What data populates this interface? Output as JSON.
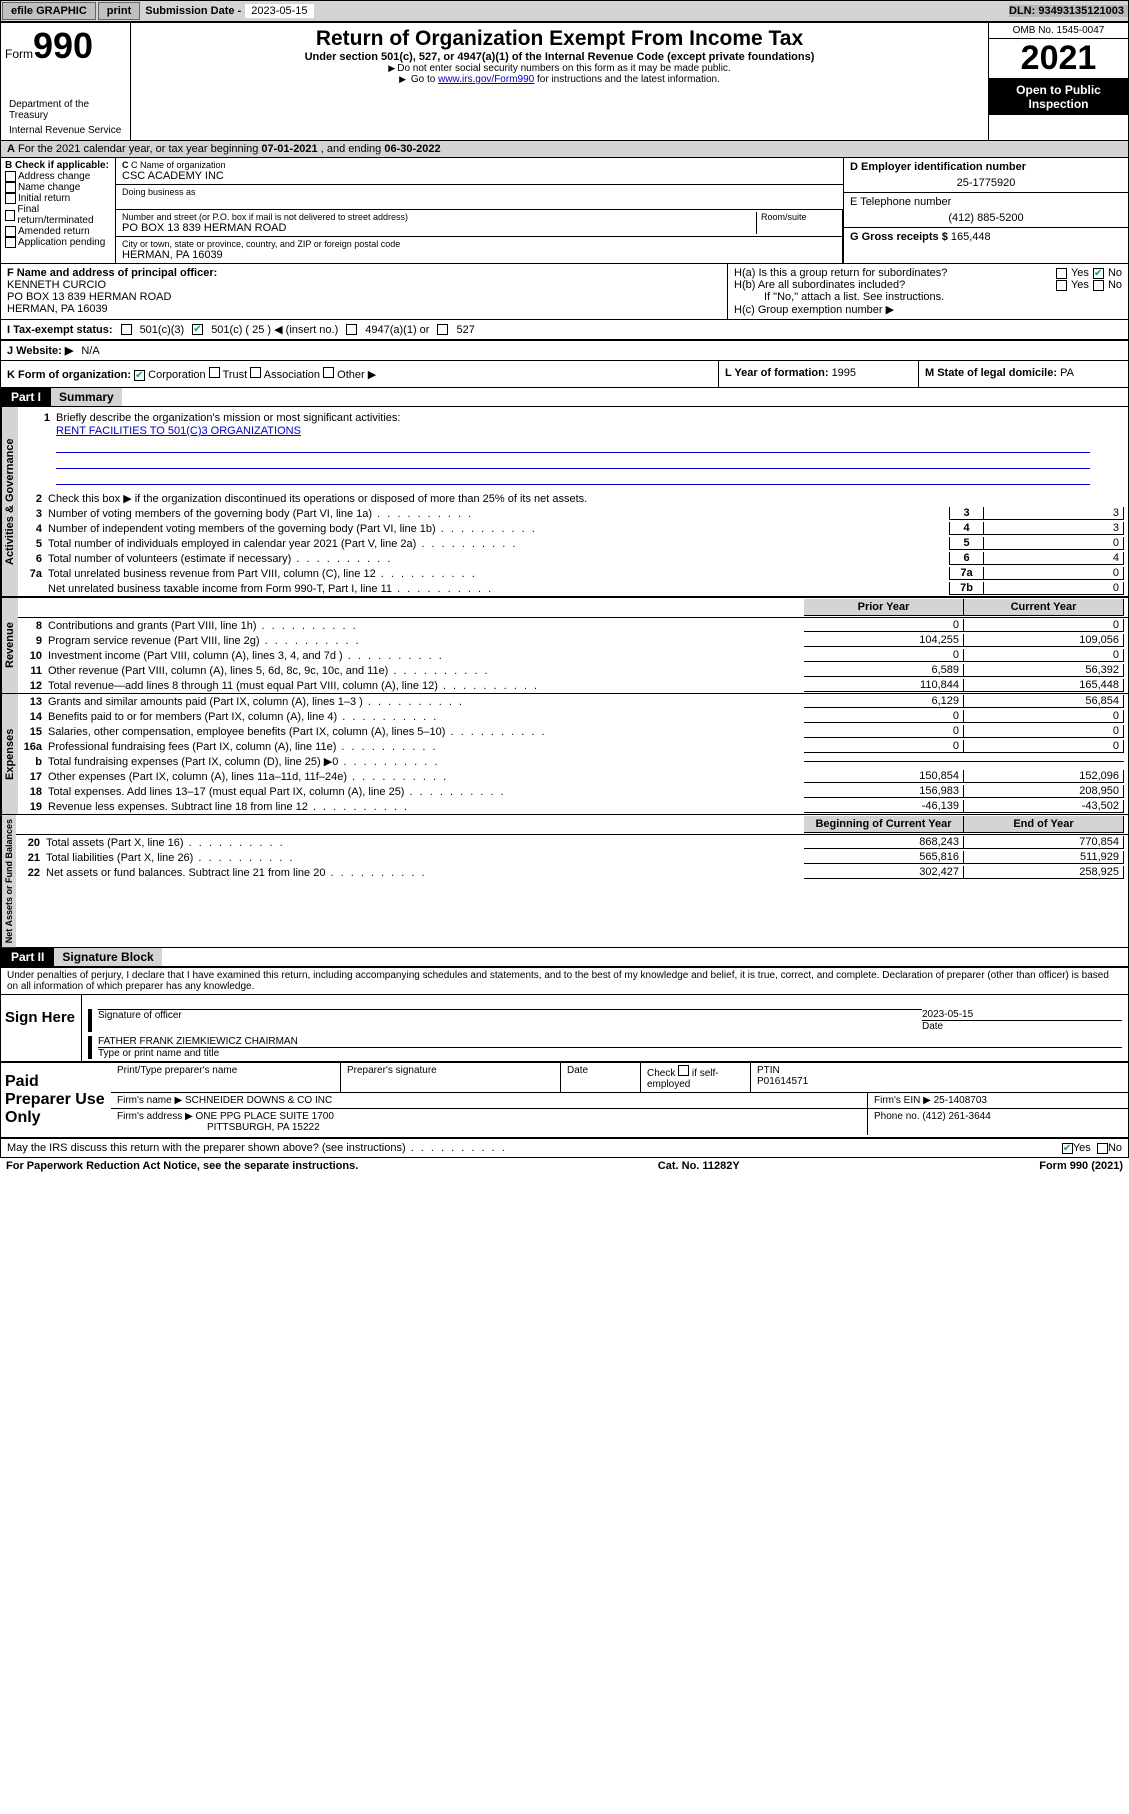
{
  "toolbar": {
    "efile": "efile GRAPHIC",
    "print": "print",
    "sub_label": "Submission Date - ",
    "sub_date": "2023-05-15",
    "dln": "DLN: 93493135121003"
  },
  "header": {
    "form": "Form",
    "num": "990",
    "title": "Return of Organization Exempt From Income Tax",
    "sub": "Under section 501(c), 527, or 4947(a)(1) of the Internal Revenue Code (except private foundations)",
    "note1": "Do not enter social security numbers on this form as it may be made public.",
    "note2_pre": "Go to ",
    "note2_link": "www.irs.gov/Form990",
    "note2_post": " for instructions and the latest information.",
    "omb": "OMB No. 1545-0047",
    "year": "2021",
    "open": "Open to Public Inspection",
    "dept": "Department of the Treasury",
    "irs": "Internal Revenue Service"
  },
  "line_a": {
    "text": "For the 2021 calendar year, or tax year beginning ",
    "begin": "07-01-2021",
    "mid": " , and ending ",
    "end": "06-30-2022"
  },
  "b": {
    "label": "B Check if applicable:",
    "opts": [
      "Address change",
      "Name change",
      "Initial return",
      "Final return/terminated",
      "Amended return",
      "Application pending"
    ]
  },
  "c": {
    "name_lbl": "C Name of organization",
    "name": "CSC ACADEMY INC",
    "dba_lbl": "Doing business as",
    "addr_lbl": "Number and street (or P.O. box if mail is not delivered to street address)",
    "room_lbl": "Room/suite",
    "addr": "PO BOX 13 839 HERMAN ROAD",
    "city_lbl": "City or town, state or province, country, and ZIP or foreign postal code",
    "city": "HERMAN, PA  16039"
  },
  "d": {
    "lbl": "D Employer identification number",
    "val": "25-1775920"
  },
  "e": {
    "lbl": "E Telephone number",
    "val": "(412) 885-5200"
  },
  "g": {
    "lbl": "G Gross receipts $ ",
    "val": "165,448"
  },
  "f": {
    "lbl": "F Name and address of principal officer:",
    "name": "KENNETH CURCIO",
    "addr1": "PO BOX 13 839 HERMAN ROAD",
    "addr2": "HERMAN, PA  16039"
  },
  "h": {
    "a": "H(a)  Is this a group return for subordinates?",
    "b": "H(b)  Are all subordinates included?",
    "note": "If \"No,\" attach a list. See instructions.",
    "c": "H(c)  Group exemption number ▶",
    "yes": "Yes",
    "no": "No"
  },
  "i": {
    "lbl": "I   Tax-exempt status:",
    "o1": "501(c)(3)",
    "o2": "501(c) ( 25 ) ◀ (insert no.)",
    "o3": "4947(a)(1) or",
    "o4": "527"
  },
  "j": {
    "lbl": "J   Website: ▶",
    "val": "N/A"
  },
  "k": {
    "lbl": "K Form of organization:",
    "o1": "Corporation",
    "o2": "Trust",
    "o3": "Association",
    "o4": "Other ▶"
  },
  "l": {
    "lbl": "L Year of formation: ",
    "val": "1995"
  },
  "m": {
    "lbl": "M State of legal domicile: ",
    "val": "PA"
  },
  "part1": {
    "hdr": "Part I",
    "title": "Summary"
  },
  "summary": {
    "l1": "Briefly describe the organization's mission or most significant activities:",
    "mission": "RENT FACILITIES TO 501(C)3 ORGANIZATIONS",
    "l2": "Check this box ▶       if the organization discontinued its operations or disposed of more than 25% of its net assets.",
    "lines_gov": [
      {
        "n": "3",
        "t": "Number of voting members of the governing body (Part VI, line 1a)",
        "box": "3",
        "v": "3"
      },
      {
        "n": "4",
        "t": "Number of independent voting members of the governing body (Part VI, line 1b)",
        "box": "4",
        "v": "3"
      },
      {
        "n": "5",
        "t": "Total number of individuals employed in calendar year 2021 (Part V, line 2a)",
        "box": "5",
        "v": "0"
      },
      {
        "n": "6",
        "t": "Total number of volunteers (estimate if necessary)",
        "box": "6",
        "v": "4"
      },
      {
        "n": "7a",
        "t": "Total unrelated business revenue from Part VIII, column (C), line 12",
        "box": "7a",
        "v": "0"
      },
      {
        "n": "",
        "t": "Net unrelated business taxable income from Form 990-T, Part I, line 11",
        "box": "7b",
        "v": "0"
      }
    ],
    "col_prior": "Prior Year",
    "col_curr": "Current Year",
    "rev": [
      {
        "n": "8",
        "t": "Contributions and grants (Part VIII, line 1h)",
        "p": "0",
        "c": "0"
      },
      {
        "n": "9",
        "t": "Program service revenue (Part VIII, line 2g)",
        "p": "104,255",
        "c": "109,056"
      },
      {
        "n": "10",
        "t": "Investment income (Part VIII, column (A), lines 3, 4, and 7d )",
        "p": "0",
        "c": "0"
      },
      {
        "n": "11",
        "t": "Other revenue (Part VIII, column (A), lines 5, 6d, 8c, 9c, 10c, and 11e)",
        "p": "6,589",
        "c": "56,392"
      },
      {
        "n": "12",
        "t": "Total revenue—add lines 8 through 11 (must equal Part VIII, column (A), line 12)",
        "p": "110,844",
        "c": "165,448"
      }
    ],
    "exp": [
      {
        "n": "13",
        "t": "Grants and similar amounts paid (Part IX, column (A), lines 1–3 )",
        "p": "6,129",
        "c": "56,854"
      },
      {
        "n": "14",
        "t": "Benefits paid to or for members (Part IX, column (A), line 4)",
        "p": "0",
        "c": "0"
      },
      {
        "n": "15",
        "t": "Salaries, other compensation, employee benefits (Part IX, column (A), lines 5–10)",
        "p": "0",
        "c": "0"
      },
      {
        "n": "16a",
        "t": "Professional fundraising fees (Part IX, column (A), line 11e)",
        "p": "0",
        "c": "0"
      },
      {
        "n": "b",
        "t": "Total fundraising expenses (Part IX, column (D), line 25) ▶0",
        "p": "",
        "c": "",
        "shaded": true
      },
      {
        "n": "17",
        "t": "Other expenses (Part IX, column (A), lines 11a–11d, 11f–24e)",
        "p": "150,854",
        "c": "152,096"
      },
      {
        "n": "18",
        "t": "Total expenses. Add lines 13–17 (must equal Part IX, column (A), line 25)",
        "p": "156,983",
        "c": "208,950"
      },
      {
        "n": "19",
        "t": "Revenue less expenses. Subtract line 18 from line 12",
        "p": "-46,139",
        "c": "-43,502"
      }
    ],
    "col_begin": "Beginning of Current Year",
    "col_end": "End of Year",
    "net": [
      {
        "n": "20",
        "t": "Total assets (Part X, line 16)",
        "p": "868,243",
        "c": "770,854"
      },
      {
        "n": "21",
        "t": "Total liabilities (Part X, line 26)",
        "p": "565,816",
        "c": "511,929"
      },
      {
        "n": "22",
        "t": "Net assets or fund balances. Subtract line 21 from line 20",
        "p": "302,427",
        "c": "258,925"
      }
    ],
    "vert_gov": "Activities & Governance",
    "vert_rev": "Revenue",
    "vert_exp": "Expenses",
    "vert_net": "Net Assets or Fund Balances"
  },
  "part2": {
    "hdr": "Part II",
    "title": "Signature Block"
  },
  "sig": {
    "decl": "Under penalties of perjury, I declare that I have examined this return, including accompanying schedules and statements, and to the best of my knowledge and belief, it is true, correct, and complete. Declaration of preparer (other than officer) is based on all information of which preparer has any knowledge.",
    "sign_here": "Sign Here",
    "sig_officer": "Signature of officer",
    "date_lbl": "Date",
    "date": "2023-05-15",
    "name": "FATHER FRANK ZIEMKIEWICZ CHAIRMAN",
    "name_lbl": "Type or print name and title"
  },
  "paid": {
    "title": "Paid Preparer Use Only",
    "h1": "Print/Type preparer's name",
    "h2": "Preparer's signature",
    "h3": "Date",
    "h4_pre": "Check",
    "h4_post": "if self-employed",
    "h5": "PTIN",
    "ptin": "P01614571",
    "firm_name_lbl": "Firm's name    ▶",
    "firm_name": "SCHNEIDER DOWNS & CO INC",
    "firm_ein_lbl": "Firm's EIN ▶",
    "firm_ein": "25-1408703",
    "firm_addr_lbl": "Firm's address ▶",
    "firm_addr1": "ONE PPG PLACE SUITE 1700",
    "firm_addr2": "PITTSBURGH, PA  15222",
    "phone_lbl": "Phone no. ",
    "phone": "(412) 261-3644"
  },
  "may": {
    "text": "May the IRS discuss this return with the preparer shown above? (see instructions)",
    "yes": "Yes",
    "no": "No"
  },
  "footer": {
    "left": "For Paperwork Reduction Act Notice, see the separate instructions.",
    "mid": "Cat. No. 11282Y",
    "right": "Form 990 (2021)"
  },
  "colors": {
    "shade": "#d4d4d4",
    "link": "#0000cc",
    "chk": "#00aa55"
  }
}
